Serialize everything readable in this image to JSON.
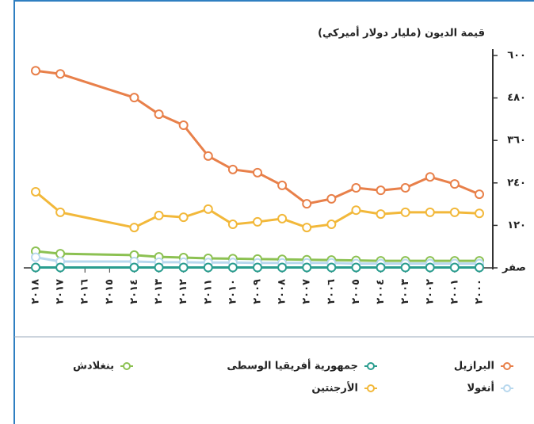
{
  "chart_data": {
    "type": "line",
    "title": "قيمة الديون (مليار دولار أميركي)",
    "x": [
      2000,
      2001,
      2002,
      2003,
      2004,
      2005,
      2006,
      2007,
      2008,
      2009,
      2010,
      2011,
      2012,
      2013,
      2014,
      2017,
      2018
    ],
    "xlim": [
      2000,
      2018
    ],
    "x_reversed": true,
    "xticks": [
      {
        "value": 2000,
        "label": "٢٠٠٠"
      },
      {
        "value": 2001,
        "label": "٢٠٠١"
      },
      {
        "value": 2002,
        "label": "٢٠٠٢"
      },
      {
        "value": 2003,
        "label": "٢٠٠٣"
      },
      {
        "value": 2004,
        "label": "٢٠٠٤"
      },
      {
        "value": 2005,
        "label": "٢٠٠٥"
      },
      {
        "value": 2006,
        "label": "٢٠٠٦"
      },
      {
        "value": 2007,
        "label": "٢٠٠٧"
      },
      {
        "value": 2008,
        "label": "٢٠٠٨"
      },
      {
        "value": 2009,
        "label": "٢٠٠٩"
      },
      {
        "value": 2010,
        "label": "٢٠١٠"
      },
      {
        "value": 2011,
        "label": "٢٠١١"
      },
      {
        "value": 2012,
        "label": "٢٠١٢"
      },
      {
        "value": 2013,
        "label": "٢٠١٣"
      },
      {
        "value": 2014,
        "label": "٢٠١٤"
      },
      {
        "value": 2015,
        "label": "٢٠١٥"
      },
      {
        "value": 2016,
        "label": "٢٠١٦"
      },
      {
        "value": 2017,
        "label": "٢٠١٧"
      },
      {
        "value": 2018,
        "label": "٢٠١٨"
      }
    ],
    "ylim": [
      0,
      600
    ],
    "yticks": [
      {
        "value": 0,
        "label": "صفر"
      },
      {
        "value": 120,
        "label": "١٢٠"
      },
      {
        "value": 240,
        "label": "٢٤٠"
      },
      {
        "value": 360,
        "label": "٣٦٠"
      },
      {
        "value": 480,
        "label": "٤٨٠"
      },
      {
        "value": 600,
        "label": "٦٠٠"
      }
    ],
    "series": [
      {
        "name": "البرازيل",
        "color": "#e8804a",
        "values": [
          208,
          237,
          257,
          226,
          219,
          226,
          195,
          181,
          233,
          269,
          278,
          316,
          403,
          434,
          481,
          548,
          557
        ]
      },
      {
        "name": "جمهورية أفريقيا الوسطى",
        "color": "#2a9d8f",
        "values": [
          1,
          1,
          1,
          1,
          1,
          1,
          1,
          1,
          1,
          1,
          1,
          1,
          1,
          1,
          1,
          1,
          1
        ]
      },
      {
        "name": "بنغلادش",
        "color": "#8cc152",
        "values": [
          20,
          20,
          20,
          20,
          20,
          21,
          22,
          23,
          24,
          25,
          26,
          27,
          29,
          31,
          36,
          40,
          47
        ]
      },
      {
        "name": "أنغولا",
        "color": "#b8d8ee",
        "values": [
          12,
          12,
          12,
          12,
          12,
          12,
          14,
          14,
          14,
          14,
          15,
          15,
          16,
          16,
          18,
          18,
          30
        ]
      },
      {
        "name": "الأرجنتين",
        "color": "#f2b83a",
        "values": [
          154,
          157,
          157,
          157,
          152,
          163,
          123,
          114,
          139,
          130,
          123,
          166,
          143,
          148,
          114,
          157,
          215
        ]
      }
    ]
  }
}
